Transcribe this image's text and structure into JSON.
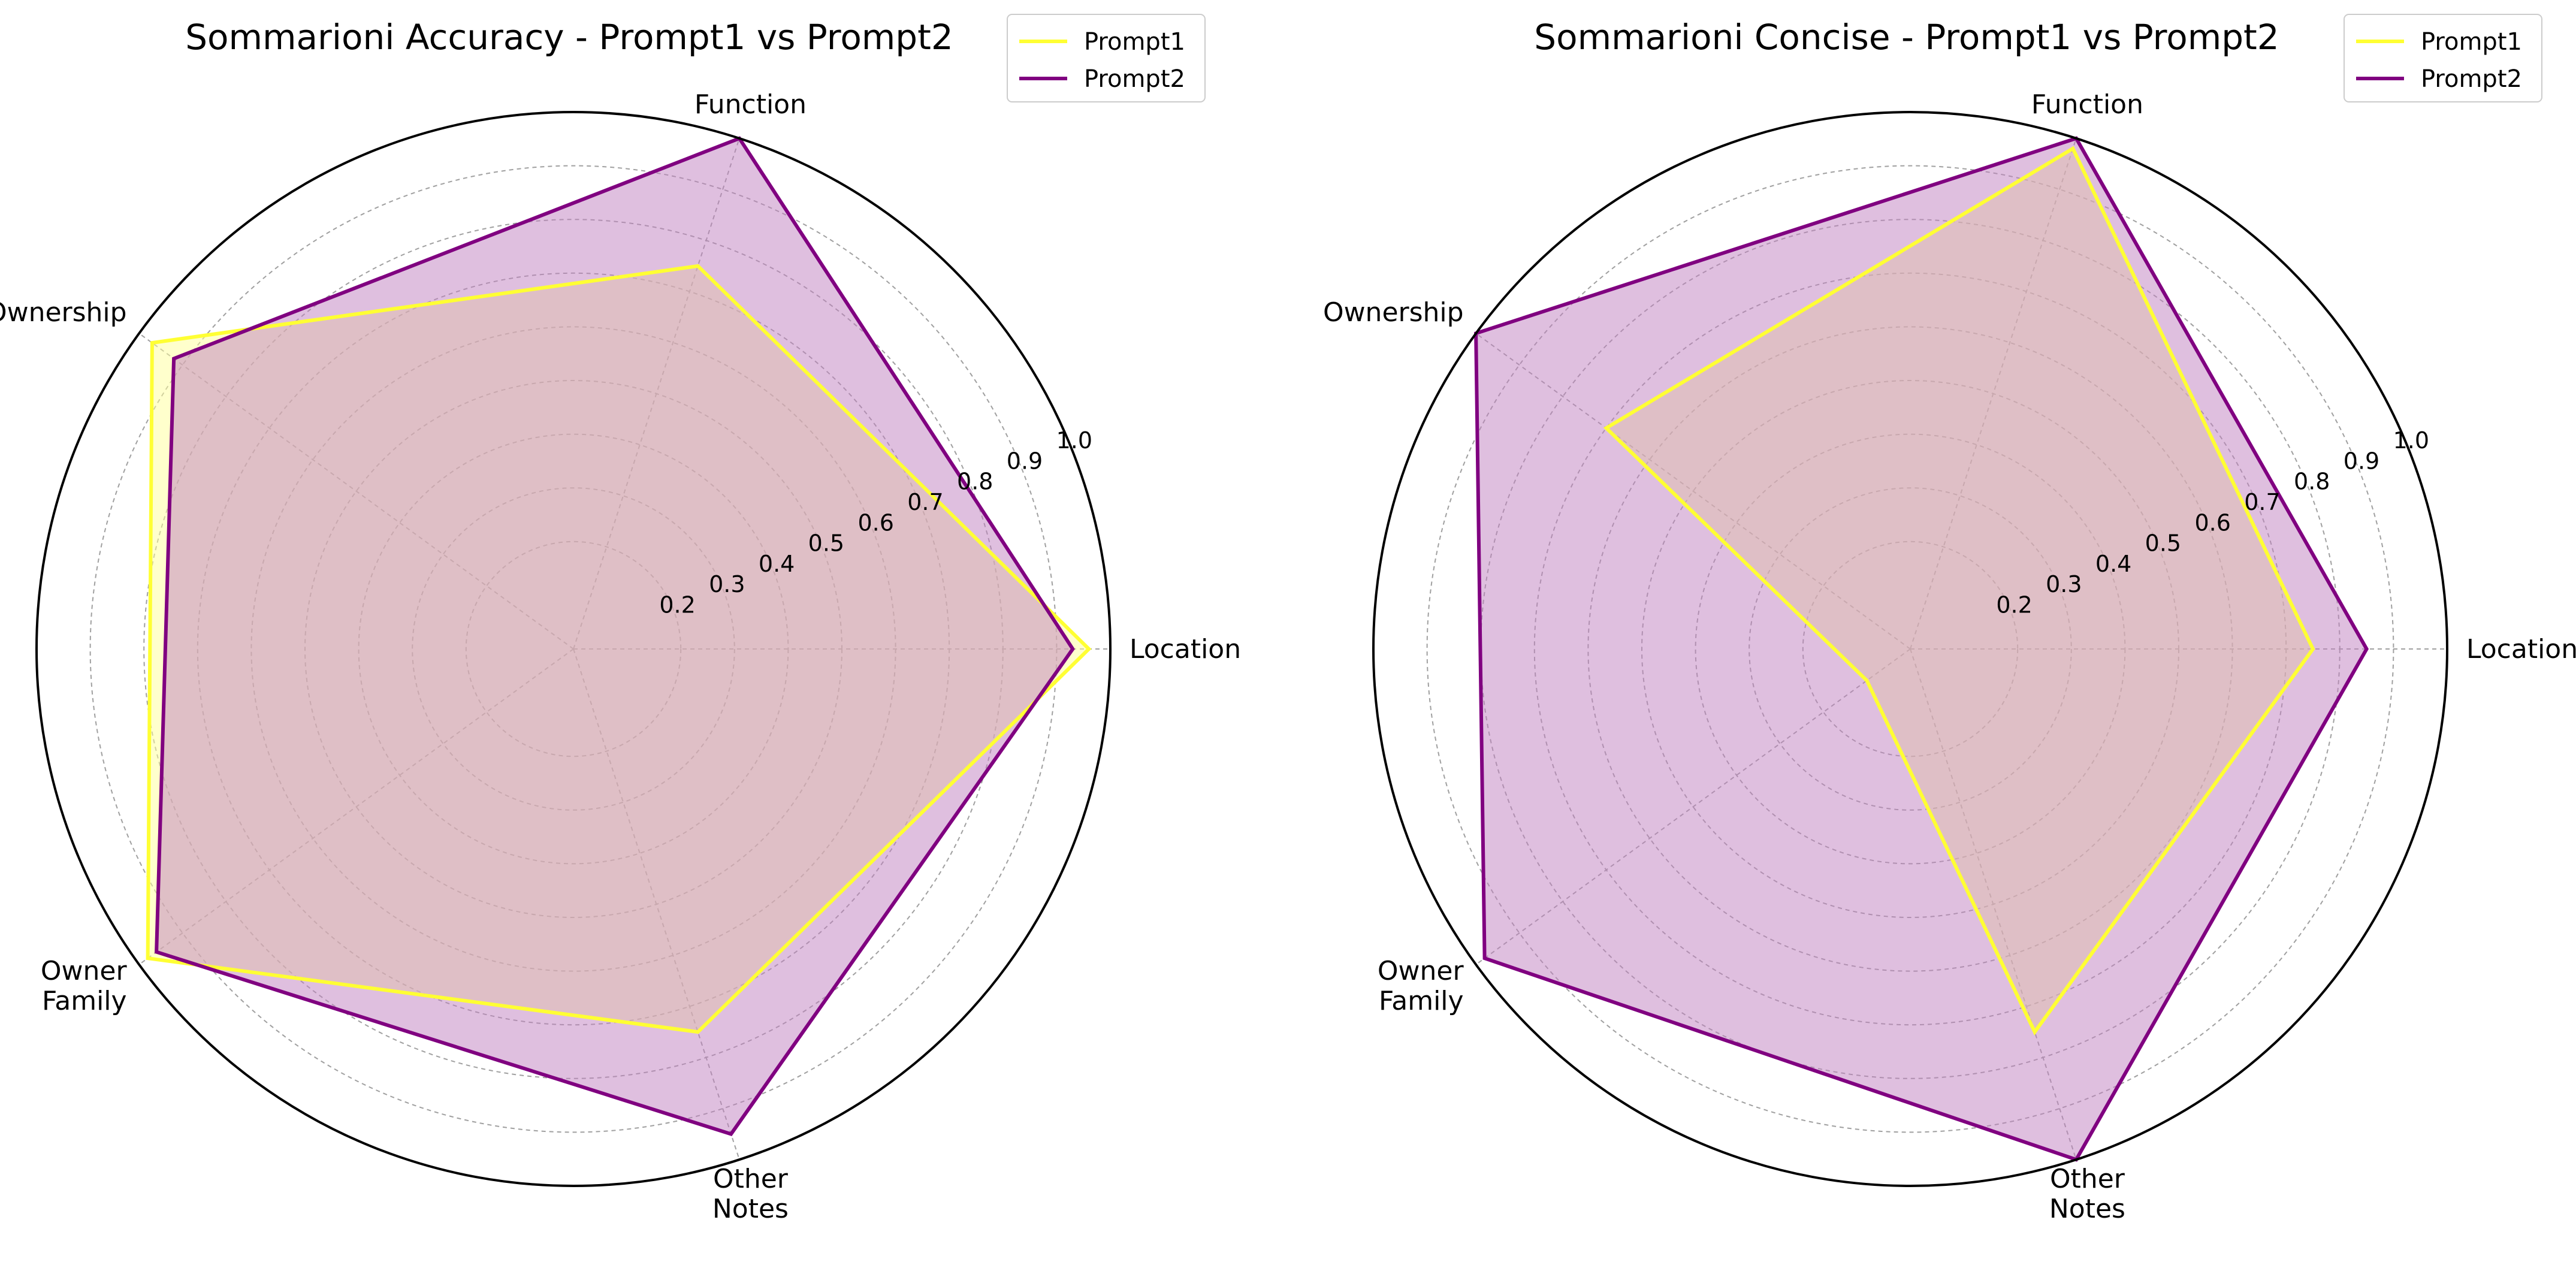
{
  "chart_data": [
    {
      "type": "radar",
      "title": "Sommarioni Accuracy - Prompt1 vs Prompt2",
      "categories": [
        "Location",
        "Function",
        "Ownership",
        "Owner\nFamily",
        "Other\nNotes"
      ],
      "rlim": [
        0.0,
        1.0
      ],
      "rticks": [
        "0.2",
        "0.3",
        "0.4",
        "0.5",
        "0.6",
        "0.7",
        "0.8",
        "0.9",
        "1.0"
      ],
      "grid": true,
      "legend_position": "top-right",
      "series": [
        {
          "name": "Prompt1",
          "values": [
            0.96,
            0.75,
            0.97,
            0.98,
            0.75
          ],
          "color": "#ffff33",
          "fill": "#ffff99"
        },
        {
          "name": "Prompt2",
          "values": [
            0.93,
            1.0,
            0.92,
            0.96,
            0.95
          ],
          "color": "#800080",
          "fill": "#c07fc0"
        }
      ]
    },
    {
      "type": "radar",
      "title": "Sommarioni Concise - Prompt1 vs Prompt2",
      "categories": [
        "Location",
        "Function",
        "Ownership",
        "Owner\nFamily",
        "Other\nNotes"
      ],
      "rlim": [
        0.0,
        1.0
      ],
      "rticks": [
        "0.2",
        "0.3",
        "0.4",
        "0.5",
        "0.6",
        "0.7",
        "0.8",
        "0.9",
        "1.0"
      ],
      "grid": true,
      "legend_position": "top-right",
      "series": [
        {
          "name": "Prompt1",
          "values": [
            0.75,
            0.98,
            0.7,
            0.1,
            0.75
          ],
          "color": "#ffff33",
          "fill": "#ffff99"
        },
        {
          "name": "Prompt2",
          "values": [
            0.85,
            1.0,
            1.0,
            0.98,
            1.0
          ],
          "color": "#800080",
          "fill": "#c07fc0"
        }
      ]
    }
  ]
}
